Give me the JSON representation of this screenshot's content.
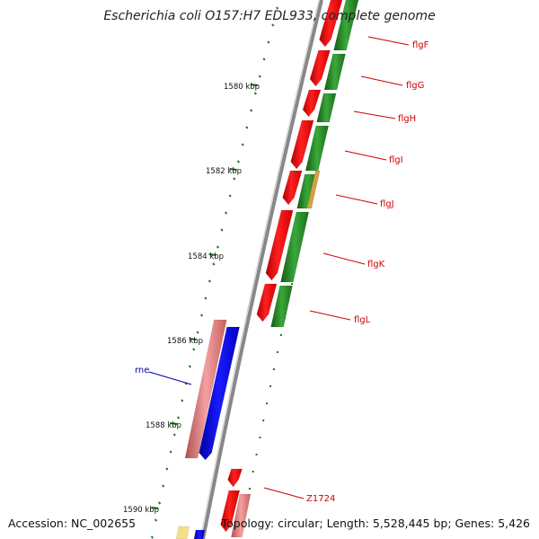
{
  "title": "Escherichia coli O157:H7 EDL933, complete genome",
  "footer": {
    "accession": "Accession: NC_002655",
    "summary": "Topology: circular; Length: 5,528,445 bp; Genes: 5,426"
  },
  "colors": {
    "forward_cds": "#ff0000",
    "reverse_cds": "#228b22",
    "rna": "#0000ff",
    "pseudo": "#e88080",
    "misc": "#d4a040",
    "gene_label": "#cc0000",
    "rna_label": "#0000aa",
    "tick": "#1a7a1a",
    "backbone": "#888888"
  },
  "ruler": [
    {
      "label": "1580 kbp"
    },
    {
      "label": "1582 kbp"
    },
    {
      "label": "1584 kbp"
    },
    {
      "label": "1586 kbp"
    },
    {
      "label": "1588 kbp"
    },
    {
      "label": "1590 kbp"
    }
  ],
  "gene_labels": [
    {
      "name": "flgF"
    },
    {
      "name": "flgG"
    },
    {
      "name": "flgH"
    },
    {
      "name": "flgI"
    },
    {
      "name": "flgJ"
    },
    {
      "name": "flgK"
    },
    {
      "name": "flgL"
    },
    {
      "name": "rne"
    },
    {
      "name": "Z1724"
    }
  ]
}
